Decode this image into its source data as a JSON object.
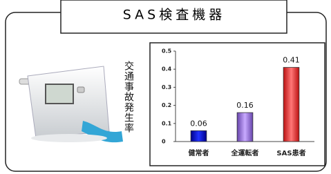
{
  "header": {
    "title": "SAS検査機器"
  },
  "side_label": "交通事故発生率",
  "chart_data": {
    "type": "bar",
    "categories": [
      "健常者",
      "全運転者",
      "SAS患者"
    ],
    "values": [
      0.06,
      0.16,
      0.41
    ],
    "colors": [
      "#1a22e0",
      "#a27ee8",
      "#ee4444"
    ],
    "ylim": [
      0,
      0.5
    ],
    "yticks": [
      0,
      0.1,
      0.2,
      0.3,
      0.4,
      0.5
    ]
  }
}
